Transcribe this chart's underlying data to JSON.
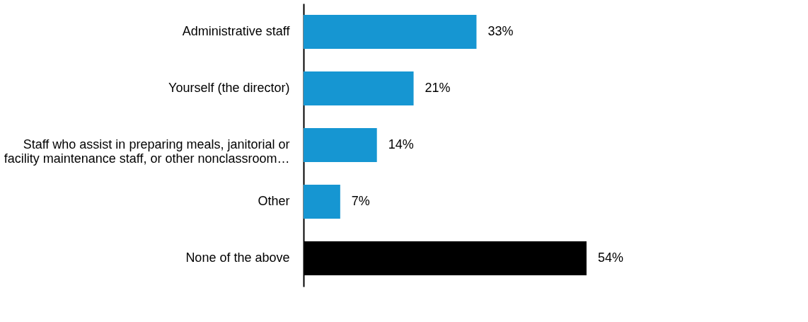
{
  "chart_data": {
    "type": "bar",
    "orientation": "horizontal",
    "categories": [
      "Administrative staff",
      "Yourself (the director)",
      "Staff who assist in preparing meals, janitorial or facility maintenance staff, or other nonclassroom…",
      "Other",
      "None of the above"
    ],
    "values": [
      33,
      21,
      14,
      7,
      54
    ],
    "colors": [
      "#1696d2",
      "#1696d2",
      "#1696d2",
      "#1696d2",
      "#000000"
    ],
    "value_labels": [
      "33%",
      "21%",
      "14%",
      "7%",
      "54%"
    ],
    "tick_labels": "y",
    "grid": false
  }
}
